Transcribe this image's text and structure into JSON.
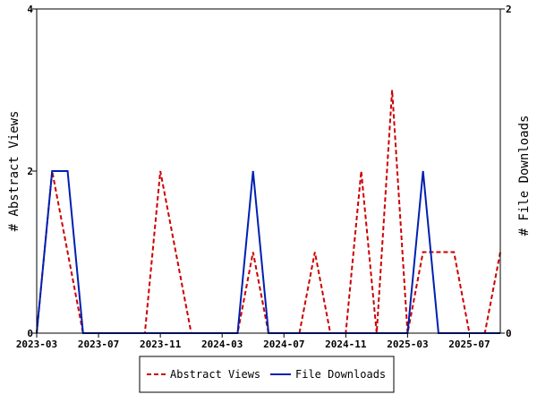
{
  "chart_data": {
    "type": "line",
    "title": "",
    "xlabel": "",
    "ylabel": "# Abstract Views",
    "y2label": "# File Downloads",
    "ylim": [
      0,
      4
    ],
    "y2lim": [
      0,
      2
    ],
    "yticks": [
      0,
      2,
      4
    ],
    "y2ticks": [
      0,
      2
    ],
    "x": [
      "2023-03",
      "2023-04",
      "2023-05",
      "2023-06",
      "2023-07",
      "2023-08",
      "2023-09",
      "2023-10",
      "2023-11",
      "2023-12",
      "2024-01",
      "2024-02",
      "2024-03",
      "2024-04",
      "2024-05",
      "2024-06",
      "2024-07",
      "2024-08",
      "2024-09",
      "2024-10",
      "2024-11",
      "2024-12",
      "2025-01",
      "2025-02",
      "2025-03",
      "2025-04",
      "2025-05",
      "2025-06",
      "2025-07",
      "2025-08",
      "2025-09"
    ],
    "xtick_labels": [
      "2023-03",
      "2023-07",
      "2023-11",
      "2024-03",
      "2024-07",
      "2024-11",
      "2025-03",
      "2025-07"
    ],
    "series": [
      {
        "name": "Abstract Views",
        "axis": "left",
        "color": "#cc0000",
        "style": "dashed",
        "values": [
          0,
          2,
          1,
          0,
          0,
          0,
          0,
          0,
          2,
          1,
          0,
          0,
          0,
          0,
          1,
          0,
          0,
          0,
          1,
          0,
          0,
          2,
          0,
          3,
          0,
          1,
          1,
          1,
          0,
          0,
          1
        ]
      },
      {
        "name": "File Downloads",
        "axis": "right",
        "color": "#0020b0",
        "style": "solid",
        "values": [
          0,
          1,
          1,
          0,
          0,
          0,
          0,
          0,
          0,
          0,
          0,
          0,
          0,
          0,
          1,
          0,
          0,
          0,
          0,
          0,
          0,
          0,
          0,
          0,
          0,
          1,
          0,
          0,
          0,
          0,
          0
        ]
      }
    ],
    "grid": false,
    "legend_position": "bottom"
  }
}
